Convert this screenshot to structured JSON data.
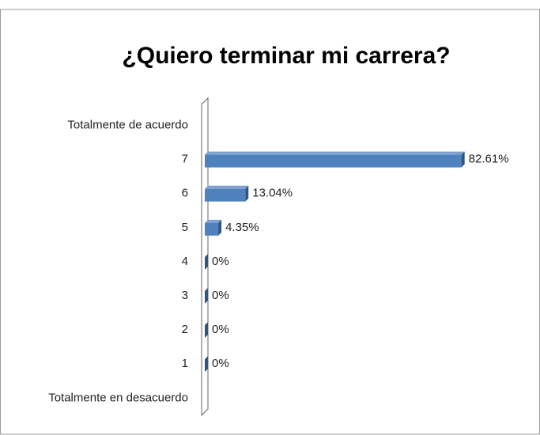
{
  "chart_data": {
    "type": "bar",
    "orientation": "horizontal",
    "title": "¿Quiero terminar mi carrera?",
    "categories": [
      "Totalmente de acuerdo",
      "7",
      "6",
      "5",
      "4",
      "3",
      "2",
      "1",
      "Totalmente en desacuerdo"
    ],
    "values": [
      null,
      82.61,
      13.04,
      4.35,
      0,
      0,
      0,
      0,
      null
    ],
    "value_labels": [
      null,
      "82.61%",
      "13.04%",
      "4.35%",
      "0%",
      "0%",
      "0%",
      "0%",
      null
    ],
    "color": "#4f81bd",
    "xlim": [
      0,
      100
    ]
  }
}
